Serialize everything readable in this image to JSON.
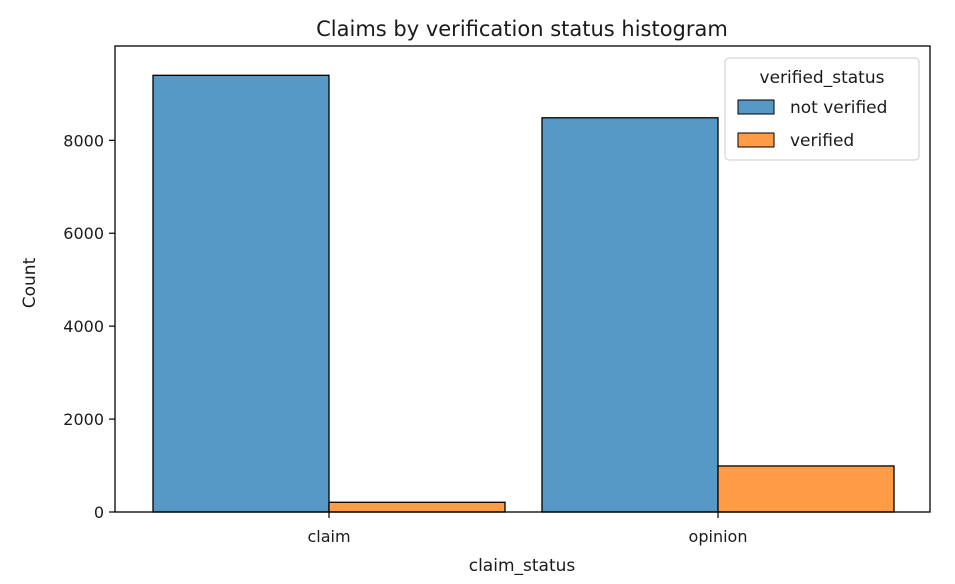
{
  "chart_data": {
    "type": "bar",
    "title": "Claims by verification status histogram",
    "xlabel": "claim_status",
    "ylabel": "Count",
    "categories": [
      "claim",
      "opinion"
    ],
    "series": [
      {
        "name": "not verified",
        "color": "#5799c6",
        "values": [
          9399,
          8485
        ]
      },
      {
        "name": "verified",
        "color": "#ff9c45",
        "values": [
          209,
          991
        ]
      }
    ],
    "ylim": [
      0,
      10030
    ],
    "yticks": [
      0,
      2000,
      4000,
      6000,
      8000
    ],
    "legend": {
      "title": "verified_status",
      "position": "top-right"
    },
    "grid": false
  }
}
